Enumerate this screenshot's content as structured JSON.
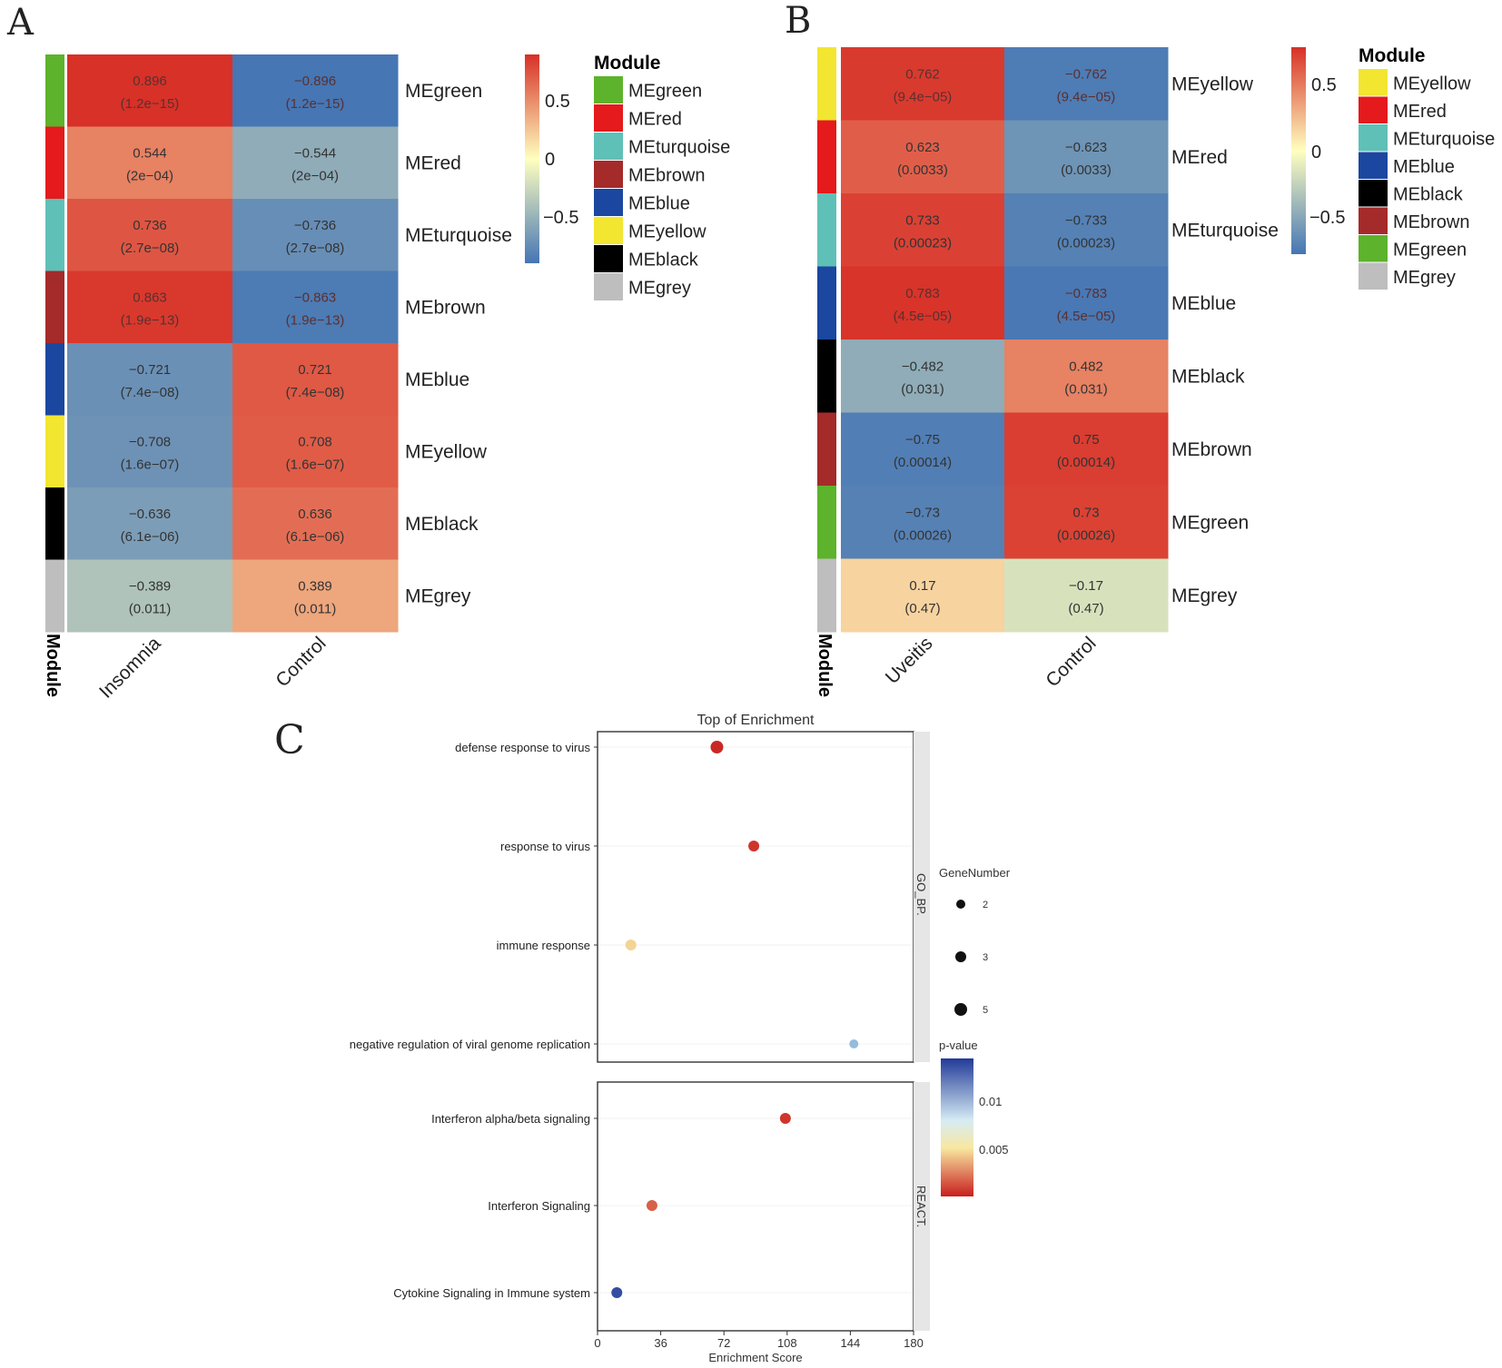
{
  "panels": {
    "a": "A",
    "b": "B",
    "c": "C"
  },
  "colors": {
    "scale_low": "#4575b4",
    "scale_mid": "#ffffbf",
    "scale_high": "#d73027",
    "pv_low": "#c81e1e",
    "pv_mid": "#f8e7a0",
    "pv_high": "#223a98"
  },
  "chart_data": [
    {
      "type": "heatmap",
      "panel": "A",
      "columns": [
        "Insomnia",
        "Control"
      ],
      "module_axis_label": "Module",
      "rows": [
        {
          "module": "MEgreen",
          "color": "#5db32b",
          "values": [
            0.896,
            -0.896
          ],
          "pvalues": [
            "(1.2e−15)",
            "(1.2e−15)"
          ]
        },
        {
          "module": "MEred",
          "color": "#e41a1c",
          "values": [
            0.544,
            -0.544
          ],
          "pvalues": [
            "(2e−04)",
            "(2e−04)"
          ]
        },
        {
          "module": "MEturquoise",
          "color": "#5fc0b8",
          "values": [
            0.736,
            -0.736
          ],
          "pvalues": [
            "(2.7e−08)",
            "(2.7e−08)"
          ]
        },
        {
          "module": "MEbrown",
          "color": "#a52a2a",
          "values": [
            0.863,
            -0.863
          ],
          "pvalues": [
            "(1.9e−13)",
            "(1.9e−13)"
          ]
        },
        {
          "module": "MEblue",
          "color": "#1c47a0",
          "values": [
            -0.721,
            0.721
          ],
          "pvalues": [
            "(7.4e−08)",
            "(7.4e−08)"
          ]
        },
        {
          "module": "MEyellow",
          "color": "#f2e631",
          "values": [
            -0.708,
            0.708
          ],
          "pvalues": [
            "(1.6e−07)",
            "(1.6e−07)"
          ]
        },
        {
          "module": "MEblack",
          "color": "#000000",
          "values": [
            -0.636,
            0.636
          ],
          "pvalues": [
            "(6.1e−06)",
            "(6.1e−06)"
          ]
        },
        {
          "module": "MEgrey",
          "color": "#bebebe",
          "values": [
            -0.389,
            0.389
          ],
          "pvalues": [
            "(0.011)",
            "(0.011)"
          ]
        }
      ],
      "value_labels": [
        [
          "0.896",
          "−0.896"
        ],
        [
          "0.544",
          "−0.544"
        ],
        [
          "0.736",
          "−0.736"
        ],
        [
          "0.863",
          "−0.863"
        ],
        [
          "−0.721",
          "0.721"
        ],
        [
          "−0.708",
          "0.708"
        ],
        [
          "−0.636",
          "0.636"
        ],
        [
          "−0.389",
          "0.389"
        ]
      ],
      "colorbar": {
        "range": [
          -0.9,
          0.9
        ],
        "ticks": [
          0.5,
          0,
          -0.5
        ],
        "tick_labels": [
          "0.5",
          "0",
          "−0.5"
        ]
      },
      "legend": {
        "title": "Module",
        "entries": [
          {
            "label": "MEgreen",
            "color": "#5db32b"
          },
          {
            "label": "MEred",
            "color": "#e41a1c"
          },
          {
            "label": "MEturquoise",
            "color": "#5fc0b8"
          },
          {
            "label": "MEbrown",
            "color": "#a52a2a"
          },
          {
            "label": "MEblue",
            "color": "#1c47a0"
          },
          {
            "label": "MEyellow",
            "color": "#f2e631"
          },
          {
            "label": "MEblack",
            "color": "#000000"
          },
          {
            "label": "MEgrey",
            "color": "#bebebe"
          }
        ]
      }
    },
    {
      "type": "heatmap",
      "panel": "B",
      "columns": [
        "Uveitis",
        "Control"
      ],
      "module_axis_label": "Module",
      "rows": [
        {
          "module": "MEyellow",
          "color": "#f2e631",
          "values": [
            0.762,
            -0.762
          ],
          "pvalues": [
            "(9.4e−05)",
            "(9.4e−05)"
          ]
        },
        {
          "module": "MEred",
          "color": "#e41a1c",
          "values": [
            0.623,
            -0.623
          ],
          "pvalues": [
            "(0.0033)",
            "(0.0033)"
          ]
        },
        {
          "module": "MEturquoise",
          "color": "#5fc0b8",
          "values": [
            0.733,
            -0.733
          ],
          "pvalues": [
            "(0.00023)",
            "(0.00023)"
          ]
        },
        {
          "module": "MEblue",
          "color": "#1c47a0",
          "values": [
            0.783,
            -0.783
          ],
          "pvalues": [
            "(4.5e−05)",
            "(4.5e−05)"
          ]
        },
        {
          "module": "MEblack",
          "color": "#000000",
          "values": [
            -0.482,
            0.482
          ],
          "pvalues": [
            "(0.031)",
            "(0.031)"
          ]
        },
        {
          "module": "MEbrown",
          "color": "#a52a2a",
          "values": [
            -0.75,
            0.75
          ],
          "pvalues": [
            "(0.00014)",
            "(0.00014)"
          ]
        },
        {
          "module": "MEgreen",
          "color": "#5db32b",
          "values": [
            -0.73,
            0.73
          ],
          "pvalues": [
            "(0.00026)",
            "(0.00026)"
          ]
        },
        {
          "module": "MEgrey",
          "color": "#bebebe",
          "values": [
            0.17,
            -0.17
          ],
          "pvalues": [
            "(0.47)",
            "(0.47)"
          ]
        }
      ],
      "value_labels": [
        [
          "0.762",
          "−0.762"
        ],
        [
          "0.623",
          "−0.623"
        ],
        [
          "0.733",
          "−0.733"
        ],
        [
          "0.783",
          "−0.783"
        ],
        [
          "−0.482",
          "0.482"
        ],
        [
          "−0.75",
          "0.75"
        ],
        [
          "−0.73",
          "0.73"
        ],
        [
          "0.17",
          "−0.17"
        ]
      ],
      "colorbar": {
        "range": [
          -0.8,
          0.8
        ],
        "ticks": [
          0.5,
          0,
          -0.5
        ],
        "tick_labels": [
          "0.5",
          "0",
          "−0.5"
        ]
      },
      "legend": {
        "title": "Module",
        "entries": [
          {
            "label": "MEyellow",
            "color": "#f2e631"
          },
          {
            "label": "MEred",
            "color": "#e41a1c"
          },
          {
            "label": "MEturquoise",
            "color": "#5fc0b8"
          },
          {
            "label": "MEblue",
            "color": "#1c47a0"
          },
          {
            "label": "MEblack",
            "color": "#000000"
          },
          {
            "label": "MEbrown",
            "color": "#a52a2a"
          },
          {
            "label": "MEgreen",
            "color": "#5db32b"
          },
          {
            "label": "MEgrey",
            "color": "#bebebe"
          }
        ]
      }
    },
    {
      "type": "scatter",
      "panel": "C",
      "title": "Top  of  Enrichment",
      "xlabel": "Enrichment Score",
      "xlim": [
        0,
        180
      ],
      "xticks": [
        0,
        36,
        72,
        108,
        144,
        180
      ],
      "xtick_labels": [
        "0",
        "36",
        "72",
        "108",
        "144",
        "180"
      ],
      "facets": [
        {
          "name": "GO_BP.",
          "terms": [
            {
              "label": "defense response to virus",
              "score": 68,
              "genes": 5,
              "pvalue": 0.0008
            },
            {
              "label": "response to virus",
              "score": 89,
              "genes": 3,
              "pvalue": 0.0012
            },
            {
              "label": "immune response",
              "score": 19,
              "genes": 3,
              "pvalue": 0.006
            },
            {
              "label": "negative regulation of viral genome replication",
              "score": 146,
              "genes": 2,
              "pvalue": 0.0105
            }
          ]
        },
        {
          "name": "REACT.",
          "terms": [
            {
              "label": "Interferon alpha/beta signaling",
              "score": 107,
              "genes": 3,
              "pvalue": 0.0012
            },
            {
              "label": "Interferon Signaling",
              "score": 31,
              "genes": 3,
              "pvalue": 0.0025
            },
            {
              "label": "Cytokine Signaling in Immune system",
              "score": 11,
              "genes": 3,
              "pvalue": 0.0135
            }
          ]
        }
      ],
      "size_legend": {
        "title": "GeneNumber",
        "values": [
          2,
          3,
          5
        ],
        "labels": [
          "2",
          "3",
          "5"
        ]
      },
      "color_legend": {
        "title": "p-value",
        "range": [
          0.0005,
          0.014
        ],
        "ticks": [
          0.01,
          0.005
        ],
        "tick_labels": [
          "0.01",
          "0.005"
        ]
      }
    }
  ]
}
